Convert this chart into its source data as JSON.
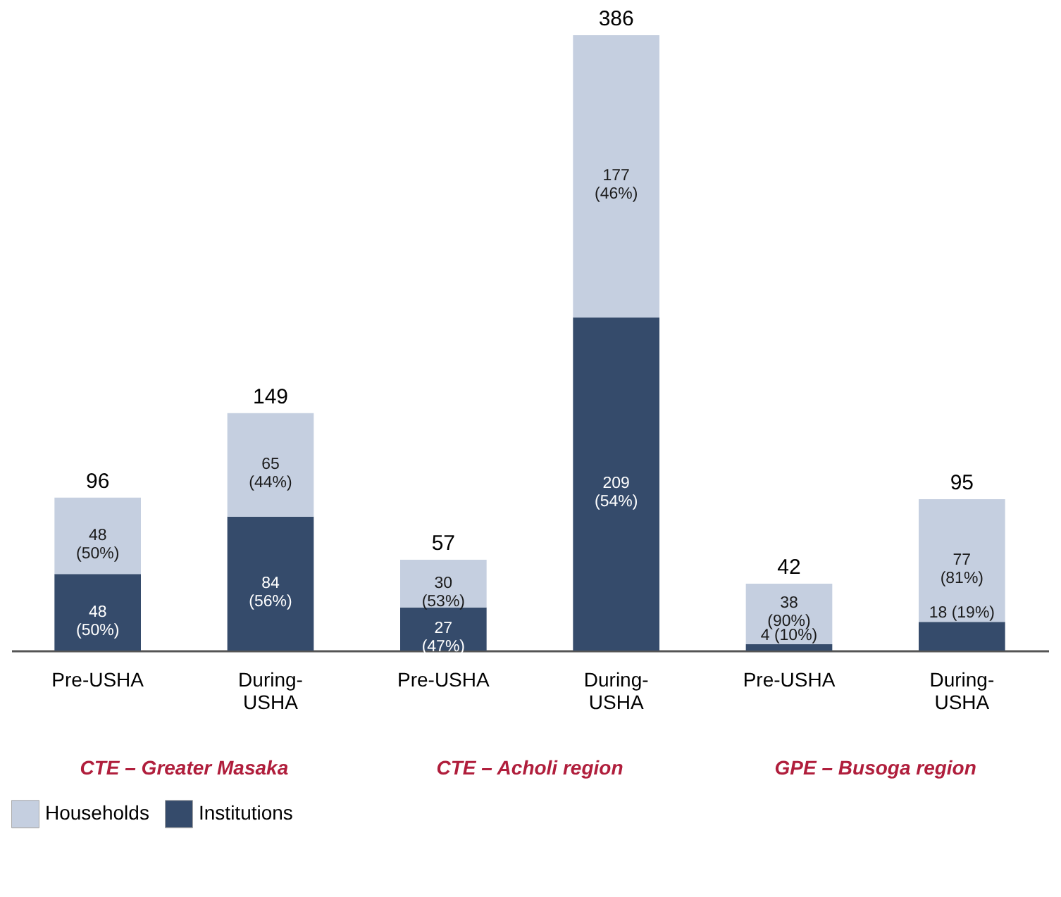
{
  "chart_data": {
    "type": "bar",
    "stacked": true,
    "categories": [
      "Pre-USHA",
      "During-USHA",
      "Pre-USHA",
      "During-USHA",
      "Pre-USHA",
      "During-USHA"
    ],
    "series": [
      {
        "name": "Institutions",
        "color": "#354b6b",
        "values": [
          48,
          84,
          27,
          209,
          4,
          18
        ],
        "value_labels": [
          "48 (50%)",
          "84 (56%)",
          "27 (47%)",
          "209 (54%)",
          "4 (10%)",
          "18 (19%)"
        ]
      },
      {
        "name": "Households",
        "color": "#c5cfe0",
        "values": [
          48,
          65,
          30,
          177,
          38,
          77
        ],
        "value_labels": [
          "48 (50%)",
          "65 (44%)",
          "30 (53%)",
          "177 (46%)",
          "38 (90%)",
          "77 (81%)"
        ]
      }
    ],
    "totals": [
      "96",
      "149",
      "57",
      "386",
      "42",
      "95"
    ],
    "annotations": [
      "CTE – Greater Masaka",
      "CTE – Acholi region",
      "GPE – Busoga region"
    ],
    "legend": "bottom",
    "grid": false
  }
}
